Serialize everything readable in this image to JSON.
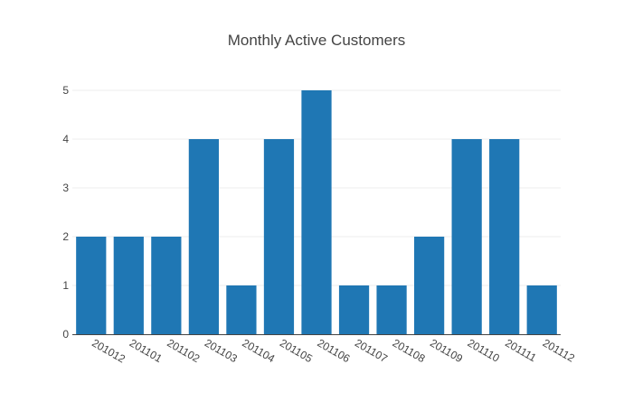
{
  "chart_data": {
    "type": "bar",
    "title": "Monthly Active Customers",
    "xlabel": "",
    "ylabel": "",
    "categories": [
      "201012",
      "201101",
      "201102",
      "201103",
      "201104",
      "201105",
      "201106",
      "201107",
      "201108",
      "201109",
      "201110",
      "201111",
      "201112"
    ],
    "values": [
      2,
      2,
      2,
      4,
      1,
      4,
      5,
      1,
      1,
      2,
      4,
      4,
      1
    ],
    "yticks": [
      "0",
      "1",
      "2",
      "3",
      "4",
      "5"
    ],
    "ylim": [
      0,
      5
    ],
    "grid": true,
    "legend": "none",
    "bar_color": "#1f77b4"
  }
}
